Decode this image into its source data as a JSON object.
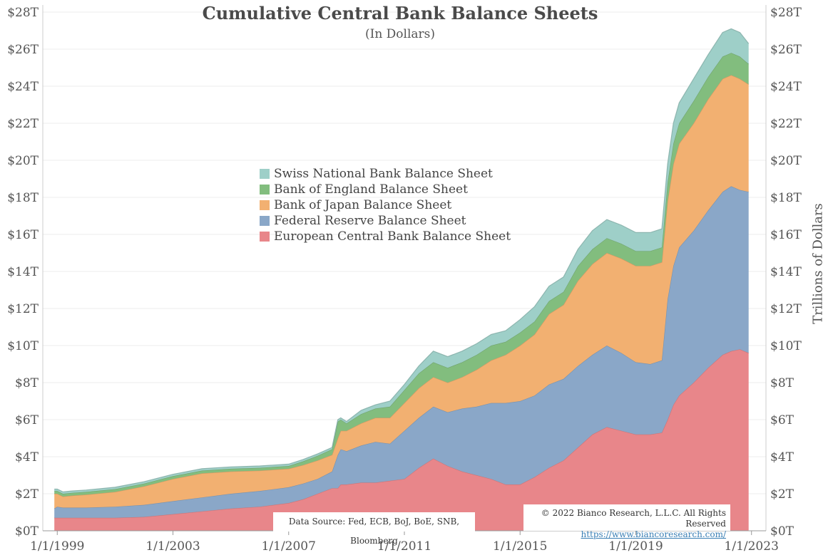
{
  "chart_data": {
    "type": "area",
    "stacked": true,
    "title": "Cumulative Central Bank Balance Sheets",
    "subtitle": "(In Dollars)",
    "ylabel_right": "Trillions of Dollars",
    "ylim": [
      0,
      28
    ],
    "xlim": [
      1998.5,
      2023.5
    ],
    "y_ticks": [
      "$0T",
      "$2T",
      "$4T",
      "$6T",
      "$8T",
      "$10T",
      "$12T",
      "$14T",
      "$16T",
      "$18T",
      "$20T",
      "$22T",
      "$24T",
      "$26T",
      "$28T"
    ],
    "x_ticks": [
      {
        "label": "1/1/1999",
        "x": 1999
      },
      {
        "label": "1/1/2003",
        "x": 2003
      },
      {
        "label": "1/1/2007",
        "x": 2007
      },
      {
        "label": "1/1/2011",
        "x": 2011
      },
      {
        "label": "1/1/2015",
        "x": 2015
      },
      {
        "label": "1/1/2019",
        "x": 2019
      },
      {
        "label": "1/1/2023",
        "x": 2023
      }
    ],
    "x": [
      1998.9,
      1999.0,
      1999.2,
      1999.5,
      2000.0,
      2001.0,
      2002.0,
      2003.0,
      2004.0,
      2005.0,
      2006.0,
      2007.0,
      2007.5,
      2008.0,
      2008.5,
      2008.7,
      2008.8,
      2009.0,
      2009.5,
      2010.0,
      2010.5,
      2011.0,
      2011.5,
      2012.0,
      2012.5,
      2013.0,
      2013.5,
      2014.0,
      2014.5,
      2015.0,
      2015.5,
      2016.0,
      2016.5,
      2017.0,
      2017.5,
      2018.0,
      2018.5,
      2019.0,
      2019.5,
      2019.9,
      2020.1,
      2020.3,
      2020.5,
      2021.0,
      2021.5,
      2022.0,
      2022.3,
      2022.6,
      2022.9
    ],
    "series": [
      {
        "name": "European Central Bank Balance Sheet",
        "color": "#e8868a",
        "values": [
          0.7,
          0.7,
          0.7,
          0.7,
          0.7,
          0.7,
          0.75,
          0.9,
          1.05,
          1.2,
          1.3,
          1.5,
          1.7,
          2.0,
          2.3,
          2.3,
          2.5,
          2.5,
          2.6,
          2.6,
          2.7,
          2.8,
          3.4,
          3.9,
          3.5,
          3.2,
          3.0,
          2.8,
          2.5,
          2.5,
          2.9,
          3.4,
          3.8,
          4.5,
          5.2,
          5.6,
          5.4,
          5.2,
          5.2,
          5.3,
          6.0,
          6.8,
          7.3,
          8.0,
          8.8,
          9.5,
          9.7,
          9.8,
          9.6
        ]
      },
      {
        "name": "Federal Reserve Balance Sheet",
        "color": "#8aa7c8",
        "values": [
          0.5,
          0.6,
          0.55,
          0.55,
          0.55,
          0.6,
          0.65,
          0.7,
          0.75,
          0.8,
          0.85,
          0.85,
          0.85,
          0.8,
          0.9,
          1.8,
          1.9,
          1.8,
          2.0,
          2.2,
          2.0,
          2.6,
          2.7,
          2.8,
          2.9,
          3.4,
          3.7,
          4.1,
          4.4,
          4.5,
          4.4,
          4.5,
          4.4,
          4.4,
          4.3,
          4.4,
          4.2,
          3.9,
          3.8,
          3.9,
          6.5,
          7.5,
          8.0,
          8.2,
          8.5,
          8.8,
          8.9,
          8.6,
          8.7
        ]
      },
      {
        "name": "Bank of Japan Balance Sheet",
        "color": "#f2b071",
        "values": [
          0.8,
          0.7,
          0.6,
          0.65,
          0.7,
          0.8,
          1.0,
          1.2,
          1.3,
          1.2,
          1.1,
          1.0,
          1.0,
          1.0,
          0.9,
          0.9,
          1.0,
          1.1,
          1.2,
          1.3,
          1.4,
          1.5,
          1.6,
          1.6,
          1.6,
          1.7,
          2.0,
          2.3,
          2.6,
          3.0,
          3.3,
          3.8,
          4.0,
          4.6,
          4.9,
          5.0,
          5.1,
          5.2,
          5.3,
          5.3,
          5.3,
          5.5,
          5.6,
          5.8,
          6.0,
          6.1,
          6.0,
          6.0,
          5.8
        ]
      },
      {
        "name": "Bank of England Balance Sheet",
        "color": "#82bd7e",
        "values": [
          0.15,
          0.15,
          0.15,
          0.15,
          0.15,
          0.15,
          0.15,
          0.15,
          0.15,
          0.15,
          0.15,
          0.15,
          0.2,
          0.25,
          0.3,
          0.9,
          0.6,
          0.4,
          0.5,
          0.5,
          0.6,
          0.7,
          0.8,
          0.8,
          0.8,
          0.8,
          0.8,
          0.8,
          0.7,
          0.7,
          0.7,
          0.7,
          0.7,
          0.8,
          0.8,
          0.8,
          0.8,
          0.8,
          0.8,
          0.8,
          1.0,
          1.1,
          1.1,
          1.2,
          1.2,
          1.2,
          1.2,
          1.2,
          1.1
        ]
      },
      {
        "name": "Swiss National Bank Balance Sheet",
        "color": "#9ecfc8",
        "values": [
          0.1,
          0.1,
          0.1,
          0.1,
          0.1,
          0.1,
          0.1,
          0.1,
          0.1,
          0.1,
          0.1,
          0.1,
          0.1,
          0.1,
          0.1,
          0.1,
          0.1,
          0.1,
          0.2,
          0.2,
          0.3,
          0.3,
          0.4,
          0.6,
          0.6,
          0.6,
          0.6,
          0.6,
          0.6,
          0.7,
          0.8,
          0.8,
          0.8,
          0.9,
          1.0,
          1.0,
          1.0,
          1.0,
          1.0,
          1.0,
          1.0,
          1.1,
          1.1,
          1.2,
          1.2,
          1.3,
          1.3,
          1.3,
          1.1
        ]
      }
    ],
    "legend_order": [
      "Swiss National Bank Balance Sheet",
      "Bank of England Balance Sheet",
      "Bank of Japan Balance Sheet",
      "Federal Reserve Balance Sheet",
      "European Central Bank Balance Sheet"
    ],
    "legend_placement": "center",
    "grid": true,
    "source": "Data Source: Fed, ECB, BoJ, BoE, SNB, Bloomberg",
    "copyright": "© 2022 Bianco Research, L.L.C. All Rights Reserved",
    "url": "https://www.biancoresearch.com/"
  }
}
